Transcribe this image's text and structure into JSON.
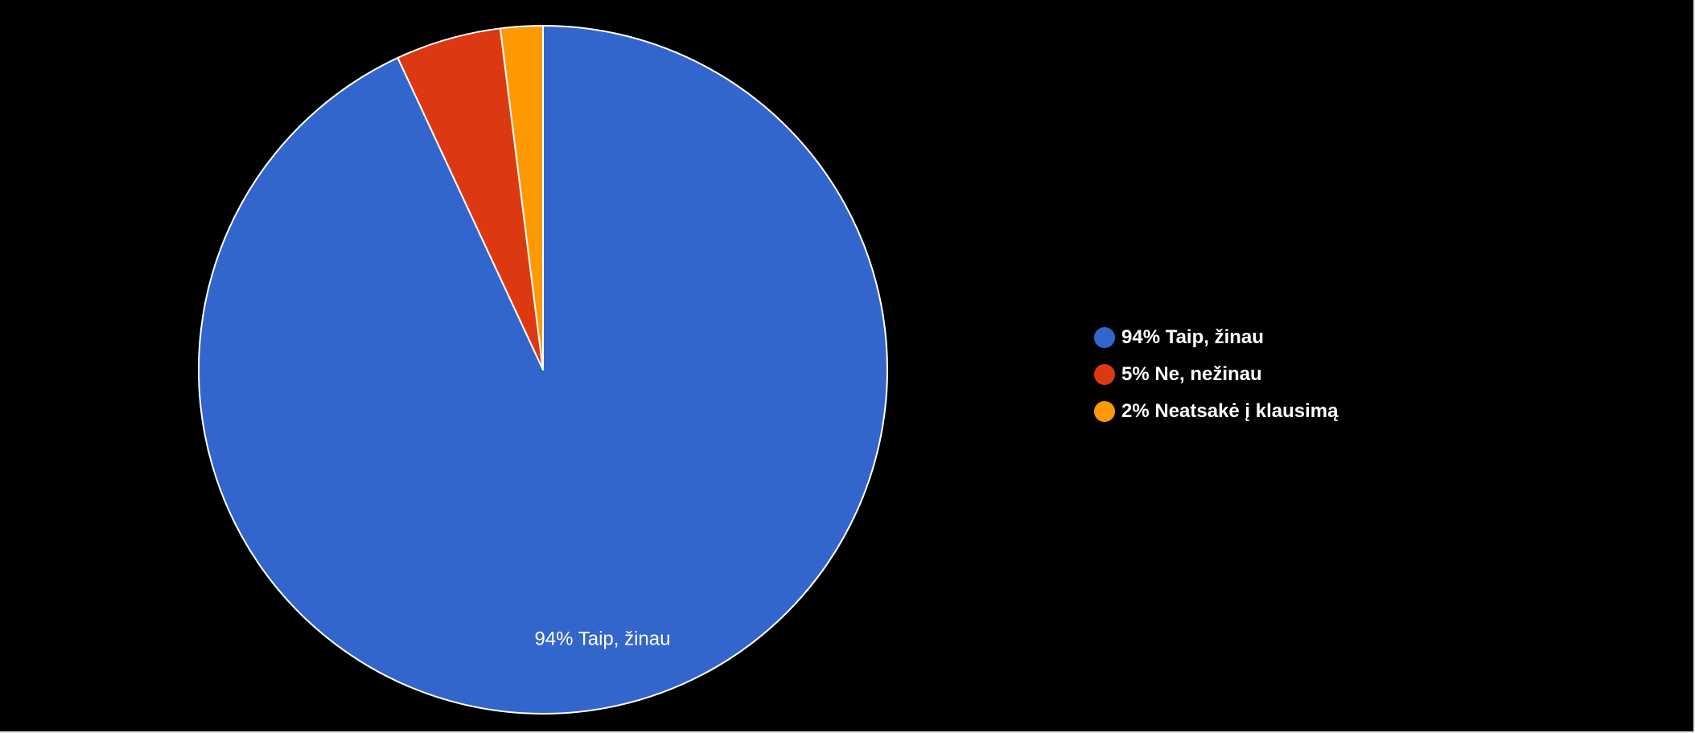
{
  "chart_data": {
    "type": "pie",
    "title": "",
    "slices": [
      {
        "label": "Taip, žinau",
        "value": 94,
        "display": "94% Taip, žinau",
        "color": "#3366cc"
      },
      {
        "label": "Ne, nežinau",
        "value": 5,
        "display": "5% Ne, nežinau",
        "color": "#dc3912"
      },
      {
        "label": "Neatsakė į klausimą",
        "value": 2,
        "display": "2% Neatsakė į klausimą",
        "color": "#ff9900"
      }
    ],
    "slice_labels": [
      "94% Taip, žinau"
    ],
    "legend_position": "right"
  },
  "colors": {
    "background": "#000000",
    "slice_border": "#ffffff",
    "text": "#ffffff"
  }
}
